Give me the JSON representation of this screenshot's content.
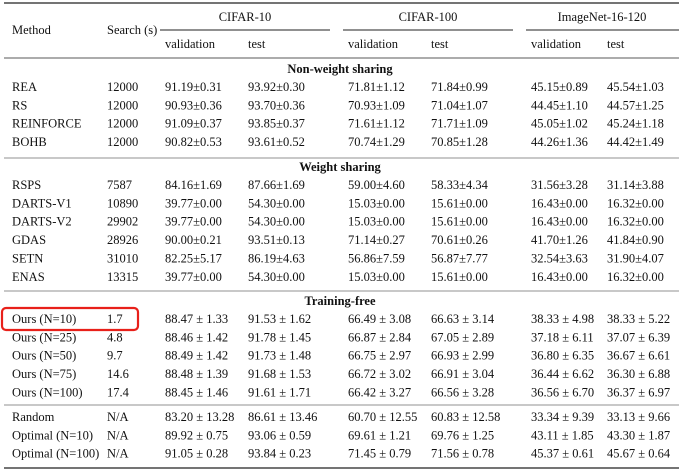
{
  "header": {
    "method": "Method",
    "search": "Search (s)",
    "datasets": [
      "CIFAR-10",
      "CIFAR-100",
      "ImageNet-16-120"
    ],
    "subcolumns": [
      "validation",
      "test",
      "validation",
      "test",
      "validation",
      "test"
    ]
  },
  "groups": [
    {
      "title": "Non-weight sharing",
      "rows": [
        [
          "REA",
          "12000",
          "91.19±0.31",
          "93.92±0.30",
          "71.81±1.12",
          "71.84±0.99",
          "45.15±0.89",
          "45.54±1.03"
        ],
        [
          "RS",
          "12000",
          "90.93±0.36",
          "93.70±0.36",
          "70.93±1.09",
          "71.04±1.07",
          "44.45±1.10",
          "44.57±1.25"
        ],
        [
          "REINFORCE",
          "12000",
          "91.09±0.37",
          "93.85±0.37",
          "71.61±1.12",
          "71.71±1.09",
          "45.05±1.02",
          "45.24±1.18"
        ],
        [
          "BOHB",
          "12000",
          "90.82±0.53",
          "93.61±0.52",
          "70.74±1.29",
          "70.85±1.28",
          "44.26±1.36",
          "44.42±1.49"
        ]
      ]
    },
    {
      "title": "Weight sharing",
      "rows": [
        [
          "RSPS",
          "7587",
          "84.16±1.69",
          "87.66±1.69",
          "59.00±4.60",
          "58.33±4.34",
          "31.56±3.28",
          "31.14±3.88"
        ],
        [
          "DARTS-V1",
          "10890",
          "39.77±0.00",
          "54.30±0.00",
          "15.03±0.00",
          "15.61±0.00",
          "16.43±0.00",
          "16.32±0.00"
        ],
        [
          "DARTS-V2",
          "29902",
          "39.77±0.00",
          "54.30±0.00",
          "15.03±0.00",
          "15.61±0.00",
          "16.43±0.00",
          "16.32±0.00"
        ],
        [
          "GDAS",
          "28926",
          "90.00±0.21",
          "93.51±0.13",
          "71.14±0.27",
          "70.61±0.26",
          "41.70±1.26",
          "41.84±0.90"
        ],
        [
          "SETN",
          "31010",
          "82.25±5.17",
          "86.19±4.63",
          "56.86±7.59",
          "56.87±7.77",
          "32.54±3.63",
          "31.90±4.07"
        ],
        [
          "ENAS",
          "13315",
          "39.77±0.00",
          "54.30±0.00",
          "15.03±0.00",
          "15.61±0.00",
          "16.43±0.00",
          "16.32±0.00"
        ]
      ]
    },
    {
      "title": "Training-free",
      "rows": [
        [
          "Ours (N=10)",
          "1.7",
          "88.47 ± 1.33",
          "91.53 ± 1.62",
          "66.49 ± 3.08",
          "66.63 ± 3.14",
          "38.33 ± 4.98",
          "38.33 ± 5.22"
        ],
        [
          "Ours (N=25)",
          "4.8",
          "88.46 ± 1.42",
          "91.78 ± 1.45",
          "66.87 ± 2.84",
          "67.05 ± 2.89",
          "37.18 ± 6.11",
          "37.07 ± 6.39"
        ],
        [
          "Ours (N=50)",
          "9.7",
          "88.49 ± 1.42",
          "91.73 ± 1.48",
          "66.75 ± 2.97",
          "66.93 ± 2.99",
          "36.80 ± 6.35",
          "36.67 ± 6.61"
        ],
        [
          "Ours (N=75)",
          "14.6",
          "88.48 ± 1.39",
          "91.68 ± 1.53",
          "66.72 ± 3.02",
          "66.91 ± 3.04",
          "36.44 ± 6.62",
          "36.30 ± 6.88"
        ],
        [
          "Ours (N=100)",
          "17.4",
          "88.45 ± 1.46",
          "91.61 ± 1.71",
          "66.42 ± 3.27",
          "66.56 ± 3.28",
          "36.56 ± 6.70",
          "36.37 ± 6.97"
        ]
      ]
    },
    {
      "rows": [
        [
          "Random",
          "N/A",
          "83.20 ± 13.28",
          "86.61 ± 13.46",
          "60.70 ± 12.55",
          "60.83 ± 12.58",
          "33.34 ± 9.39",
          "33.13 ± 9.66"
        ],
        [
          "Optimal (N=10)",
          "N/A",
          "89.92 ± 0.75",
          "93.06 ± 0.59",
          "69.61 ± 1.21",
          "69.76 ± 1.25",
          "43.11 ± 1.85",
          "43.30 ± 1.87"
        ],
        [
          "Optimal (N=100)",
          "N/A",
          "91.05 ± 0.28",
          "93.84 ± 0.23",
          "71.45 ± 0.79",
          "71.56 ± 0.78",
          "45.37 ± 0.61",
          "45.67 ± 0.64"
        ]
      ]
    }
  ]
}
